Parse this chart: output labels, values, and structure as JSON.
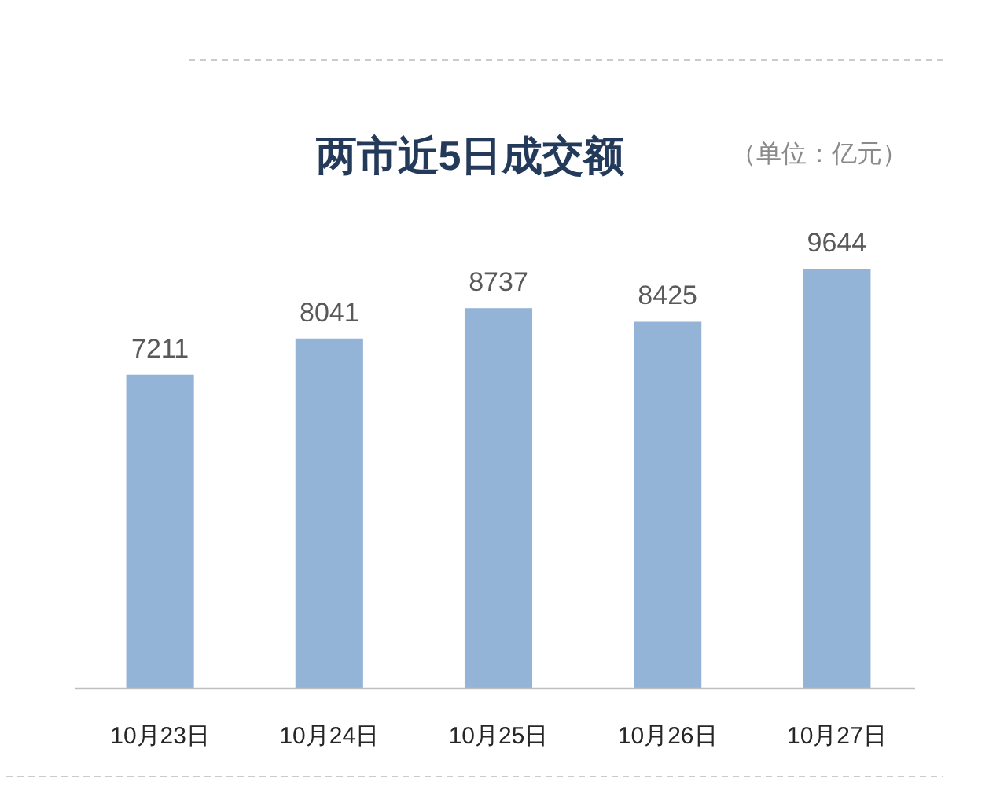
{
  "chart_data": {
    "type": "bar",
    "title": "两市近5日成交额",
    "subtitle": "（单位：亿元）",
    "categories": [
      "10月23日",
      "10月24日",
      "10月25日",
      "10月26日",
      "10月27日"
    ],
    "values": [
      7211,
      8041,
      8737,
      8425,
      9644
    ],
    "color": "#93b3d7",
    "data_labels": true
  }
}
